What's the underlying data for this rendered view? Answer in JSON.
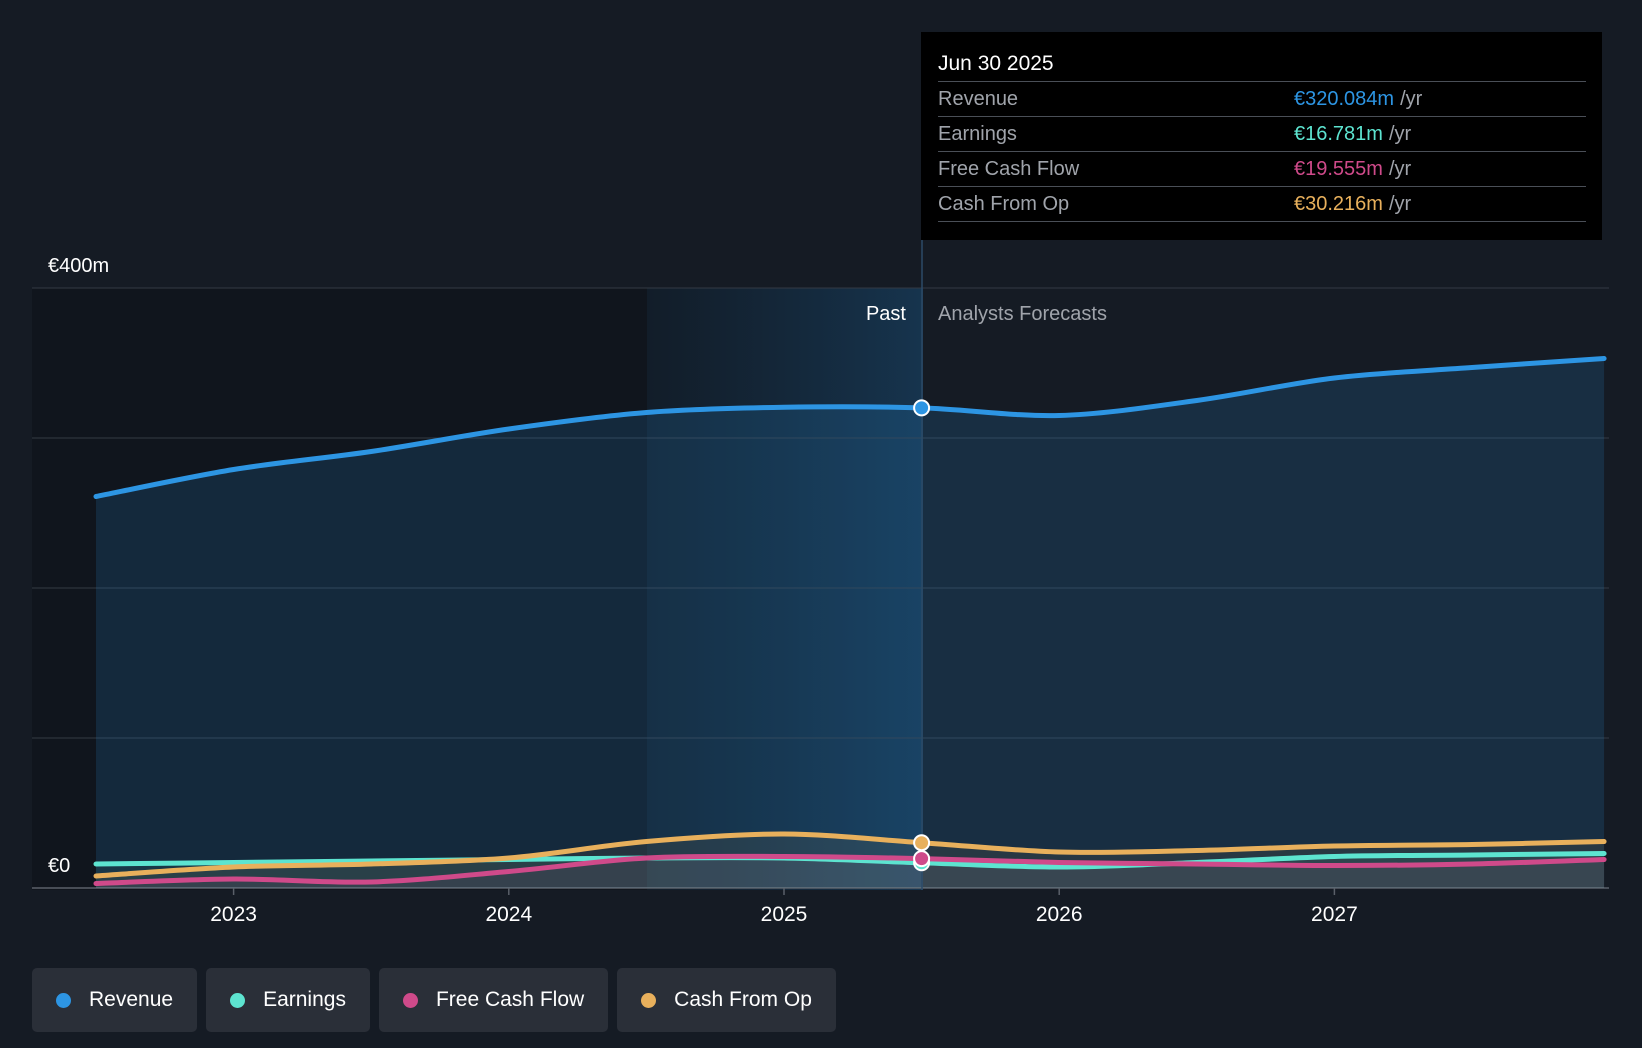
{
  "chart_data": {
    "type": "area",
    "y_axis": {
      "min": 0,
      "max": 400,
      "top_label": "€400m",
      "bottom_label": "€0"
    },
    "x_ticks": [
      "2023",
      "2024",
      "2025",
      "2026",
      "2027"
    ],
    "x_range": [
      2022.5,
      2027.98
    ],
    "divider_x": 2025.5,
    "past_label": "Past",
    "forecast_label": "Analysts Forecasts",
    "series": [
      {
        "name": "Revenue",
        "color": "#2d95e3",
        "points": [
          [
            2022.5,
            261
          ],
          [
            2023,
            279
          ],
          [
            2023.5,
            291
          ],
          [
            2024,
            306
          ],
          [
            2024.5,
            317
          ],
          [
            2025,
            320.5
          ],
          [
            2025.5,
            320.1
          ],
          [
            2026,
            315
          ],
          [
            2026.5,
            325
          ],
          [
            2027,
            340
          ],
          [
            2027.5,
            347
          ],
          [
            2027.98,
            353
          ]
        ]
      },
      {
        "name": "Earnings",
        "color": "#5de4d0",
        "points": [
          [
            2022.5,
            16
          ],
          [
            2023,
            17
          ],
          [
            2023.5,
            18
          ],
          [
            2024,
            19
          ],
          [
            2024.5,
            20
          ],
          [
            2025,
            20
          ],
          [
            2025.5,
            16.8
          ],
          [
            2026,
            14
          ],
          [
            2026.5,
            17
          ],
          [
            2027,
            21
          ],
          [
            2027.5,
            22
          ],
          [
            2027.98,
            23
          ]
        ]
      },
      {
        "name": "Free Cash Flow",
        "color": "#cf4a8a",
        "points": [
          [
            2022.5,
            3
          ],
          [
            2023,
            6
          ],
          [
            2023.5,
            4
          ],
          [
            2024,
            11
          ],
          [
            2024.5,
            20
          ],
          [
            2025,
            21
          ],
          [
            2025.5,
            19.6
          ],
          [
            2026,
            17
          ],
          [
            2026.5,
            16
          ],
          [
            2027,
            15
          ],
          [
            2027.5,
            16
          ],
          [
            2027.98,
            19
          ]
        ]
      },
      {
        "name": "Cash From Op",
        "color": "#e8b05c",
        "points": [
          [
            2022.5,
            8
          ],
          [
            2023,
            14
          ],
          [
            2023.5,
            16
          ],
          [
            2024,
            20
          ],
          [
            2024.5,
            31
          ],
          [
            2025,
            36
          ],
          [
            2025.5,
            30.2
          ],
          [
            2026,
            24
          ],
          [
            2026.5,
            25
          ],
          [
            2027,
            28
          ],
          [
            2027.5,
            29
          ],
          [
            2027.98,
            31
          ]
        ]
      }
    ]
  },
  "tooltip": {
    "date": "Jun 30 2025",
    "rows": [
      {
        "label": "Revenue",
        "value": "€320.084m",
        "unit": "/yr",
        "color": "#2d95e3"
      },
      {
        "label": "Earnings",
        "value": "€16.781m",
        "unit": "/yr",
        "color": "#5de4d0"
      },
      {
        "label": "Free Cash Flow",
        "value": "€19.555m",
        "unit": "/yr",
        "color": "#cf4a8a"
      },
      {
        "label": "Cash From Op",
        "value": "€30.216m",
        "unit": "/yr",
        "color": "#e8b05c"
      }
    ]
  },
  "legend": [
    {
      "label": "Revenue",
      "color": "#2d95e3"
    },
    {
      "label": "Earnings",
      "color": "#5de4d0"
    },
    {
      "label": "Free Cash Flow",
      "color": "#cf4a8a"
    },
    {
      "label": "Cash From Op",
      "color": "#e8b05c"
    }
  ]
}
